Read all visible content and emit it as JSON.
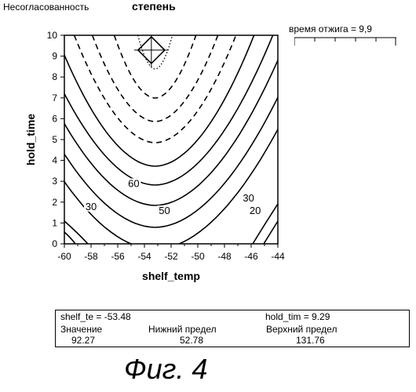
{
  "header": {
    "left_title": "Несогласованность",
    "main_title": "степень"
  },
  "slider": {
    "label": "время отжига = 9,9"
  },
  "chart_data": {
    "type": "contour",
    "xlabel": "shelf_temp",
    "ylabel": "hold_time",
    "xlim": [
      -60,
      -44
    ],
    "ylim": [
      0,
      10
    ],
    "x_ticks": [
      "-60",
      "-58",
      "-56",
      "-54",
      "-52",
      "-50",
      "-48",
      "-46",
      "-44"
    ],
    "y_ticks": [
      "0",
      "1",
      "2",
      "3",
      "4",
      "5",
      "6",
      "7",
      "8",
      "9",
      "10"
    ],
    "contour_labels": [
      {
        "text": "60",
        "x": -54.8,
        "y": 2.8
      },
      {
        "text": "50",
        "x": -52.5,
        "y": 1.5
      },
      {
        "text": "30",
        "x": -58.0,
        "y": 1.7
      },
      {
        "text": "30",
        "x": -46.2,
        "y": 2.1
      },
      {
        "text": "20",
        "x": -45.7,
        "y": 1.5
      }
    ],
    "marker": {
      "x": -53.48,
      "y": 9.29
    }
  },
  "info": {
    "shelf_te": "shelf_te = -53.48",
    "hold_tim": "hold_tim = 9.29",
    "value_label": "Значение",
    "value": "92.27",
    "lower_label": "Нижний предел",
    "lower": "52.78",
    "upper_label": "Верхний предел",
    "upper": "131.76"
  },
  "caption": "Фиг. 4"
}
